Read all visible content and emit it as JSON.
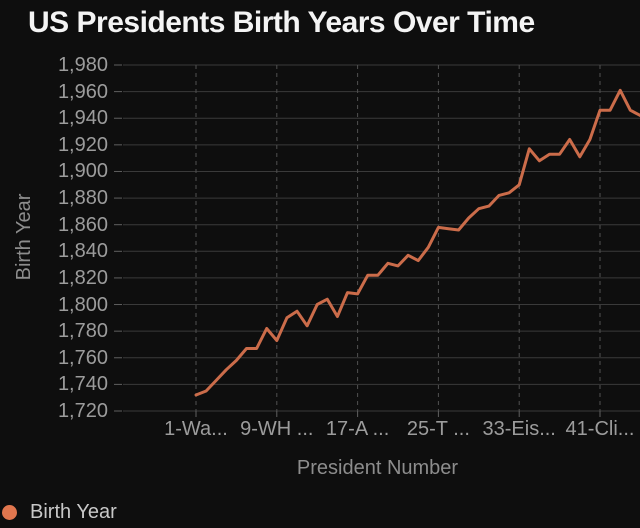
{
  "colors": {
    "bg": "#0e0e0e",
    "title_text": "#f4f4f4",
    "tick_text": "#9c9c9c",
    "axis_title": "#8d8d8d",
    "legend_text": "#c8c8c8",
    "accent_line": "#cb6c4a",
    "accent_dot": "#e0764e",
    "hgrid": "#3a3a3a",
    "vgrid": "#515151",
    "tick_mark": "#606060"
  },
  "header": {
    "title": "US Presidents Birth Years Over Time"
  },
  "legend": {
    "items": [
      {
        "label": "Birth Year"
      }
    ]
  },
  "chart_data": {
    "type": "line",
    "title": "US Presidents Birth Years Over Time",
    "xlabel": "President Number",
    "ylabel": "Birth Year",
    "ylim": [
      1720,
      1980
    ],
    "y_tick_step": 20,
    "grid": true,
    "legend_position": "bottom-left",
    "y_tick_labels": [
      "1,980",
      "1,960",
      "1,940",
      "1,920",
      "1,900",
      "1,880",
      "1,860",
      "1,840",
      "1,820",
      "1,800",
      "1,780",
      "1,760",
      "1,740",
      "1,720"
    ],
    "x_ticks": [
      {
        "label": "1-Wa...",
        "n": 1
      },
      {
        "label": "9-WH ...",
        "n": 9
      },
      {
        "label": "17-A ...",
        "n": 17
      },
      {
        "label": "25-T ...",
        "n": 25
      },
      {
        "label": "33-Eis...",
        "n": 33
      },
      {
        "label": "41-Cli...",
        "n": 41
      }
    ],
    "x": [
      1,
      2,
      3,
      4,
      5,
      6,
      7,
      8,
      9,
      10,
      11,
      12,
      13,
      14,
      15,
      16,
      17,
      18,
      19,
      20,
      21,
      22,
      23,
      24,
      25,
      26,
      27,
      28,
      29,
      30,
      31,
      32,
      33,
      34,
      35,
      36,
      37,
      38,
      39,
      40,
      41,
      42,
      43,
      44,
      45
    ],
    "series": [
      {
        "name": "Birth Year",
        "values": [
          1732,
          1735,
          1743,
          1751,
          1758,
          1767,
          1767,
          1782,
          1773,
          1790,
          1795,
          1784,
          1800,
          1804,
          1791,
          1809,
          1808,
          1822,
          1822,
          1831,
          1829,
          1837,
          1833,
          1843,
          1858,
          1857,
          1856,
          1865,
          1872,
          1874,
          1882,
          1884,
          1890,
          1917,
          1908,
          1913,
          1913,
          1924,
          1911,
          1924,
          1946,
          1946,
          1961,
          1946,
          1942
        ]
      }
    ]
  }
}
